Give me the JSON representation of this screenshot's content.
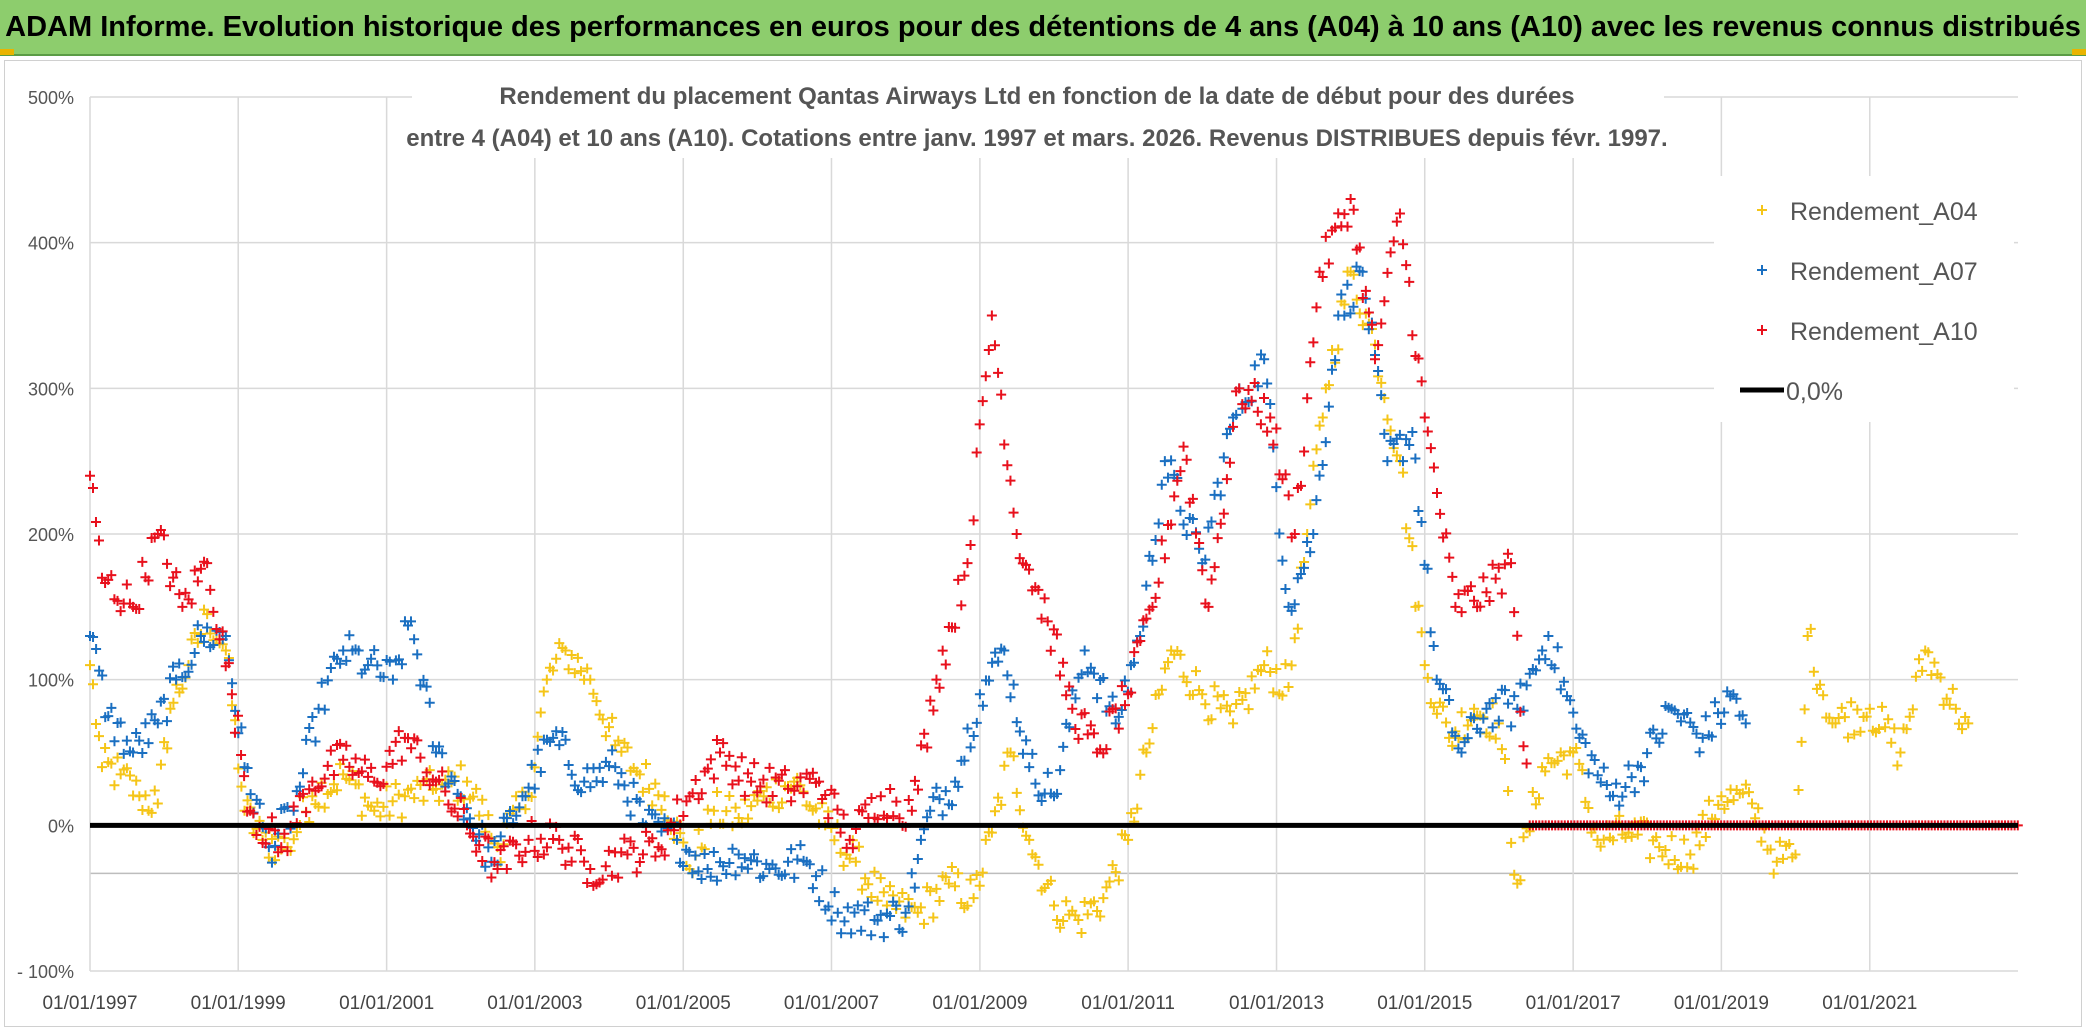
{
  "banner": {
    "title": "ADAM Informe. Evolution historique des performances en euros pour des détentions de 4 ans (A04) à 10 ans (A10) avec les revenus connus distribués"
  },
  "colors": {
    "banner_bg": "#8dcd6d",
    "A04": "#f5c518",
    "A07": "#1a6fc1",
    "A10": "#e8101c",
    "zero_line": "#000000",
    "grid": "#d9d9d9"
  },
  "chart_data": {
    "type": "scatter",
    "title_line1": "Rendement du placement Qantas Airways Ltd en fonction de la date de début pour des durées",
    "title_line2": "entre 4 (A04) et 10 ans (A10). Cotations entre janv. 1997 et mars. 2026. Revenus DISTRIBUES depuis févr. 1997.",
    "xlabel": "",
    "ylabel": "",
    "x_range": [
      "1997-01-01",
      "2023-01-01"
    ],
    "ylim": [
      -100,
      500
    ],
    "y_ticks": [
      "- 100%",
      "0%",
      "100%",
      "200%",
      "300%",
      "400%",
      "500%"
    ],
    "y_tick_values": [
      -100,
      0,
      100,
      200,
      300,
      400,
      500
    ],
    "x_ticks": [
      "01/01/1997",
      "01/01/1999",
      "01/01/2001",
      "01/01/2003",
      "01/01/2005",
      "01/01/2007",
      "01/01/2009",
      "01/01/2011",
      "01/01/2013",
      "01/01/2015",
      "01/01/2017",
      "01/01/2019",
      "01/01/2021"
    ],
    "grid": true,
    "legend_position": "top-right",
    "legend": [
      "Rendement_A04",
      "Rendement_A07",
      "Rendement_A10",
      "0,0%"
    ],
    "series": [
      {
        "name": "Rendement_A04",
        "marker": "+",
        "points": [
          [
            "1997-01-01",
            110
          ],
          [
            "1997-03-01",
            40
          ],
          [
            "1997-06-01",
            35
          ],
          [
            "1997-09-01",
            20
          ],
          [
            "1997-12-01",
            15
          ],
          [
            "1998-02-01",
            80
          ],
          [
            "1998-05-01",
            110
          ],
          [
            "1998-08-01",
            145
          ],
          [
            "1998-11-01",
            120
          ],
          [
            "1999-02-01",
            10
          ],
          [
            "1999-05-01",
            -10
          ],
          [
            "1999-09-01",
            -15
          ],
          [
            "2000-01-01",
            20
          ],
          [
            "2000-06-01",
            35
          ],
          [
            "2000-11-01",
            10
          ],
          [
            "2001-04-01",
            20
          ],
          [
            "2001-09-01",
            25
          ],
          [
            "2002-02-01",
            30
          ],
          [
            "2002-07-01",
            -15
          ],
          [
            "2002-12-01",
            20
          ],
          [
            "2003-03-01",
            100
          ],
          [
            "2003-06-01",
            120
          ],
          [
            "2003-10-01",
            100
          ],
          [
            "2004-02-01",
            55
          ],
          [
            "2004-06-01",
            35
          ],
          [
            "2004-10-01",
            20
          ],
          [
            "2005-02-01",
            -30
          ],
          [
            "2005-06-01",
            10
          ],
          [
            "2005-10-01",
            5
          ],
          [
            "2006-02-01",
            20
          ],
          [
            "2006-07-01",
            30
          ],
          [
            "2006-12-01",
            0
          ],
          [
            "2007-05-01",
            -25
          ],
          [
            "2007-10-01",
            -55
          ],
          [
            "2008-03-01",
            -60
          ],
          [
            "2008-08-01",
            -40
          ],
          [
            "2008-12-01",
            -50
          ],
          [
            "2009-03-01",
            -5
          ],
          [
            "2009-06-01",
            50
          ],
          [
            "2009-09-01",
            -10
          ],
          [
            "2010-01-01",
            -55
          ],
          [
            "2010-05-01",
            -65
          ],
          [
            "2010-09-01",
            -50
          ],
          [
            "2011-01-01",
            -10
          ],
          [
            "2011-04-01",
            50
          ],
          [
            "2011-08-01",
            120
          ],
          [
            "2012-01-01",
            90
          ],
          [
            "2012-06-01",
            70
          ],
          [
            "2012-11-01",
            110
          ],
          [
            "2013-03-01",
            95
          ],
          [
            "2013-06-01",
            200
          ],
          [
            "2013-09-01",
            300
          ],
          [
            "2014-01-01",
            380
          ],
          [
            "2014-05-01",
            330
          ],
          [
            "2014-09-01",
            250
          ],
          [
            "2015-01-01",
            110
          ],
          [
            "2015-05-01",
            60
          ],
          [
            "2015-09-01",
            80
          ],
          [
            "2016-01-01",
            70
          ],
          [
            "2016-04-01",
            -40
          ],
          [
            "2016-08-01",
            40
          ],
          [
            "2017-01-01",
            50
          ],
          [
            "2017-05-01",
            -10
          ],
          [
            "2017-10-01",
            -5
          ],
          [
            "2018-03-01",
            -15
          ],
          [
            "2018-08-01",
            -20
          ],
          [
            "2019-01-01",
            20
          ],
          [
            "2019-06-01",
            15
          ],
          [
            "2019-10-01",
            -25
          ],
          [
            "2020-01-01",
            -20
          ],
          [
            "2020-03-01",
            130
          ],
          [
            "2020-07-01",
            70
          ],
          [
            "2021-01-01",
            80
          ],
          [
            "2021-06-01",
            50
          ],
          [
            "2021-10-01",
            120
          ],
          [
            "2022-03-01",
            80
          ],
          [
            "2022-05-01",
            70
          ]
        ]
      },
      {
        "name": "Rendement_A07",
        "marker": "+",
        "points": [
          [
            "1997-01-01",
            130
          ],
          [
            "1997-04-01",
            75
          ],
          [
            "1997-08-01",
            50
          ],
          [
            "1997-12-01",
            70
          ],
          [
            "1998-03-01",
            100
          ],
          [
            "1998-07-01",
            130
          ],
          [
            "1998-11-01",
            130
          ],
          [
            "1999-02-01",
            40
          ],
          [
            "1999-06-01",
            -15
          ],
          [
            "1999-10-01",
            10
          ],
          [
            "2000-02-01",
            80
          ],
          [
            "2000-06-01",
            120
          ],
          [
            "2000-10-01",
            110
          ],
          [
            "2001-02-01",
            100
          ],
          [
            "2001-05-01",
            140
          ],
          [
            "2001-09-01",
            50
          ],
          [
            "2002-01-01",
            20
          ],
          [
            "2002-06-01",
            -25
          ],
          [
            "2002-11-01",
            20
          ],
          [
            "2003-04-01",
            60
          ],
          [
            "2003-09-01",
            30
          ],
          [
            "2004-02-01",
            40
          ],
          [
            "2004-07-01",
            0
          ],
          [
            "2004-12-01",
            -10
          ],
          [
            "2005-05-01",
            -30
          ],
          [
            "2005-10-01",
            -20
          ],
          [
            "2006-03-01",
            -30
          ],
          [
            "2006-09-01",
            -25
          ],
          [
            "2007-02-01",
            -60
          ],
          [
            "2007-08-01",
            -65
          ],
          [
            "2008-01-01",
            -60
          ],
          [
            "2008-05-01",
            10
          ],
          [
            "2008-09-01",
            30
          ],
          [
            "2009-01-01",
            90
          ],
          [
            "2009-05-01",
            120
          ],
          [
            "2009-09-01",
            40
          ],
          [
            "2010-01-01",
            20
          ],
          [
            "2010-06-01",
            120
          ],
          [
            "2010-11-01",
            70
          ],
          [
            "2011-03-01",
            130
          ],
          [
            "2011-07-01",
            250
          ],
          [
            "2012-01-01",
            180
          ],
          [
            "2012-06-01",
            280
          ],
          [
            "2012-11-01",
            320
          ],
          [
            "2013-03-01",
            150
          ],
          [
            "2013-07-01",
            200
          ],
          [
            "2013-11-01",
            350
          ],
          [
            "2014-03-01",
            380
          ],
          [
            "2014-07-01",
            250
          ],
          [
            "2014-11-01",
            270
          ],
          [
            "2015-03-01",
            100
          ],
          [
            "2015-07-01",
            50
          ],
          [
            "2015-11-01",
            80
          ],
          [
            "2016-04-01",
            80
          ],
          [
            "2016-09-01",
            130
          ],
          [
            "2017-02-01",
            60
          ],
          [
            "2017-07-01",
            20
          ],
          [
            "2017-12-01",
            40
          ],
          [
            "2018-05-01",
            80
          ],
          [
            "2018-10-01",
            60
          ],
          [
            "2019-03-01",
            90
          ],
          [
            "2019-05-01",
            70
          ]
        ]
      },
      {
        "name": "Rendement_A10",
        "marker": "+",
        "points": [
          [
            "1997-01-01",
            240
          ],
          [
            "1997-03-01",
            170
          ],
          [
            "1997-08-01",
            150
          ],
          [
            "1997-12-01",
            200
          ],
          [
            "1998-04-01",
            150
          ],
          [
            "1998-08-01",
            180
          ],
          [
            "1998-12-01",
            90
          ],
          [
            "1999-03-01",
            10
          ],
          [
            "1999-08-01",
            -15
          ],
          [
            "2000-01-01",
            30
          ],
          [
            "2000-06-01",
            45
          ],
          [
            "2000-11-01",
            30
          ],
          [
            "2001-04-01",
            60
          ],
          [
            "2001-09-01",
            30
          ],
          [
            "2002-02-01",
            0
          ],
          [
            "2002-07-01",
            -30
          ],
          [
            "2002-12-01",
            -10
          ],
          [
            "2003-05-01",
            -10
          ],
          [
            "2003-10-01",
            -30
          ],
          [
            "2004-04-01",
            -20
          ],
          [
            "2004-09-01",
            -15
          ],
          [
            "2005-02-01",
            20
          ],
          [
            "2005-07-01",
            50
          ],
          [
            "2005-12-01",
            30
          ],
          [
            "2006-06-01",
            25
          ],
          [
            "2006-11-01",
            30
          ],
          [
            "2007-04-01",
            -10
          ],
          [
            "2007-09-01",
            20
          ],
          [
            "2008-02-01",
            10
          ],
          [
            "2008-06-01",
            100
          ],
          [
            "2008-11-01",
            180
          ],
          [
            "2009-03-01",
            350
          ],
          [
            "2009-07-01",
            200
          ],
          [
            "2009-12-01",
            140
          ],
          [
            "2010-04-01",
            80
          ],
          [
            "2010-08-01",
            50
          ],
          [
            "2011-01-01",
            90
          ],
          [
            "2011-05-01",
            150
          ],
          [
            "2011-10-01",
            260
          ],
          [
            "2012-02-01",
            150
          ],
          [
            "2012-07-01",
            300
          ],
          [
            "2012-12-01",
            280
          ],
          [
            "2013-04-01",
            200
          ],
          [
            "2013-08-01",
            380
          ],
          [
            "2014-01-01",
            430
          ],
          [
            "2014-05-01",
            320
          ],
          [
            "2014-09-01",
            420
          ],
          [
            "2015-01-01",
            280
          ],
          [
            "2015-06-01",
            150
          ],
          [
            "2015-11-01",
            160
          ],
          [
            "2016-03-01",
            180
          ],
          [
            "2016-06-01",
            0
          ],
          [
            "2022-12-31",
            0
          ]
        ]
      }
    ]
  }
}
